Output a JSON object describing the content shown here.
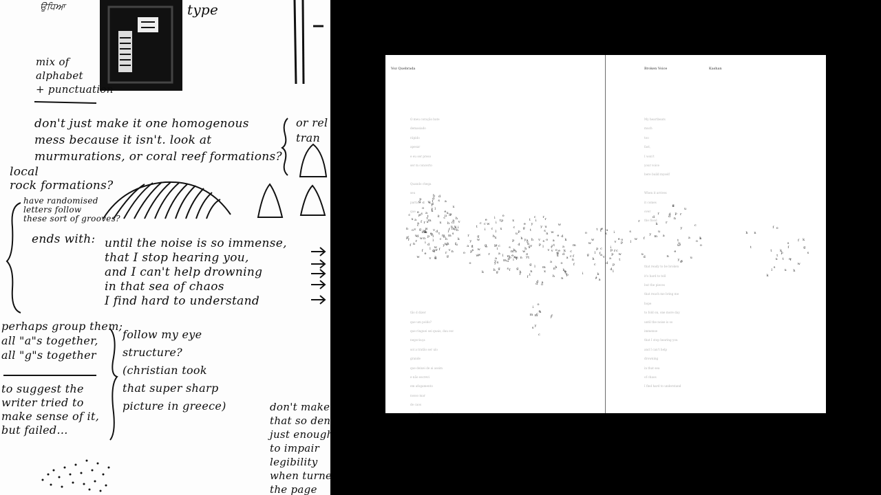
{
  "sketch_notes": {
    "top_label_left": "ਉਧਿਆ",
    "top_label_type": "type",
    "mix_note": "mix of\nalphabet\n+ punctuation",
    "homogenous_note": "don't just make it one homogenous\nmess because it isn't. look at\nmurmurations, or coral reef formations?",
    "rel_note": "or rel\ntran",
    "local_note": "local\nrock formations?",
    "grooves_note": "have randomised\nletters follow\nthese sort of grooves?",
    "ends_label": "ends with:",
    "ending_lines": "until the noise is so immense,\nthat I stop hearing you,\nand I can't help drowning\nin that sea of chaos\nI find hard to understand",
    "group_note": "perhaps group them;\nall \"a\"s together,\nall \"g\"s together",
    "suggest_note": "to suggest the\nwriter tried to\nmake sense of it,\nbut failed...",
    "follow_note": "follow my eye\nstructure?\n(christian took\nthat super sharp\npicture in greece)",
    "legibility_note": "don't make\nthat so den\njust enough\nto impair\nlegibility\nwhen turned\nthe page"
  },
  "spread": {
    "left_header": "Voz Quebrada",
    "right_header_title": "Broken Voice",
    "right_header_author": "Kashan",
    "left_poem": [
      "O meu coração bate",
      "demasiado",
      "rápido",
      "apesar",
      "e eu ser preso",
      "ser m      concerto",
      "",
      "Quando chega",
      "seu",
      "partida",
      "que",
      "",
      "",
      "",
      "",
      "",
      "",
      "",
      "",
      "",
      "",
      "tão d dizer",
      "que um poldo?",
      "que ringuei sei quais, dau esc",
      "         negociuça",
      "sol a tratão ser      ulo",
      "grande",
      "que deixei de ai assim",
      "e não escrevi",
      "em afogamento",
      "         nosso mar",
      "         de caos",
      "que não posso ler bem"
    ],
    "right_poem": [
      "My heartbeats",
      "much",
      "too",
      "fast,",
      "I won't",
      "your voice",
      "here      build myself",
      "",
      "When it arrives",
      "it comes",
      "over",
      "the flood",
      "",
      "",
      "",
      "",
      "that ready to be broken",
      "it's hard to tell",
      "but the pieces",
      "that reach me bring me",
      "         hope",
      "to fold on, one more day",
      "until the noise is       so",
      "         immense",
      "that I stop hearing you",
      "and I can't help",
      "drowning",
      "         in that sea",
      "         of chaos",
      "I find hard to understand"
    ],
    "scatter_letters": "ceoatuslxhmdfgnriwvpyk"
  }
}
